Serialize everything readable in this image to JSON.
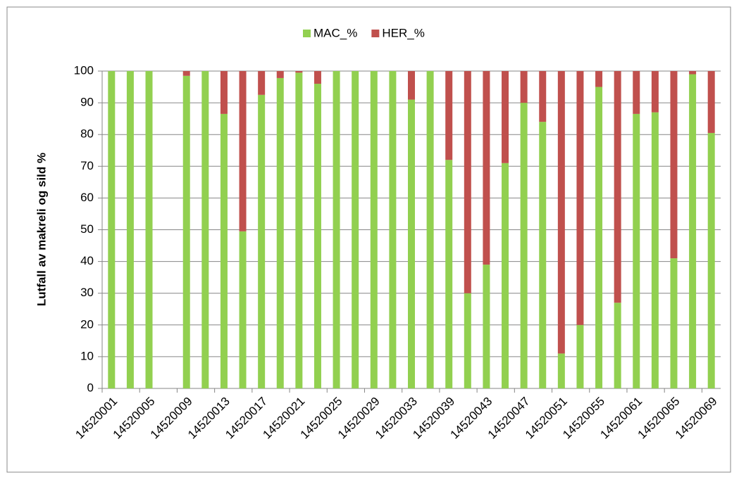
{
  "chart_data": {
    "type": "stacked_bar",
    "y_label": "Lutfall av makreli og sild %",
    "categories": [
      "14520001",
      null,
      "14520005",
      null,
      "14520009",
      null,
      "14520013",
      null,
      "14520017",
      null,
      "14520021",
      null,
      "14520025",
      null,
      "14520029",
      null,
      "14520033",
      null,
      "14520039",
      null,
      "14520043",
      null,
      "14520047",
      null,
      "14520051",
      null,
      "14520055",
      null,
      "14520061",
      null,
      "14520065",
      null,
      "14520069"
    ],
    "series": [
      {
        "name": "MAC_%",
        "color": "#92d050",
        "values": [
          100,
          100,
          100,
          null,
          98.5,
          100,
          86.5,
          49.5,
          92.5,
          97.8,
          99.5,
          96,
          100,
          100,
          100,
          100,
          91,
          100,
          72,
          30,
          39,
          71,
          90,
          84,
          11,
          20,
          95,
          27,
          86.5,
          87,
          41,
          99,
          80.5
        ]
      },
      {
        "name": "HER_%",
        "color": "#c0504d",
        "values": [
          0,
          0,
          0,
          null,
          1.5,
          0,
          13.5,
          50.5,
          7.5,
          2.2,
          0.5,
          4,
          0,
          0,
          0,
          0,
          9,
          0,
          28,
          70,
          61,
          29,
          10,
          16,
          89,
          80,
          5,
          73,
          13.5,
          13,
          59,
          1,
          19.5
        ]
      }
    ],
    "ylim": [
      0,
      100
    ],
    "yticks": [
      0,
      10,
      20,
      30,
      40,
      50,
      60,
      70,
      80,
      90,
      100
    ],
    "grid": true,
    "legend": "top"
  }
}
